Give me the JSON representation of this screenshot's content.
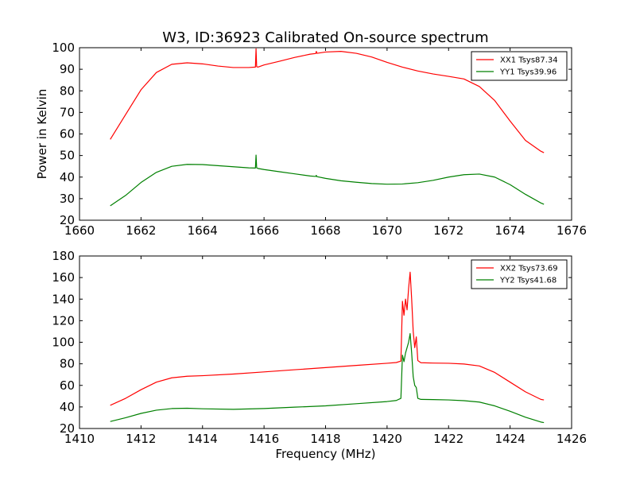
{
  "chart_data": [
    {
      "type": "line",
      "title": "W3, ID:36923 Calibrated On-source spectrum",
      "xlabel": "",
      "ylabel": "Power in Kelvin",
      "xlim": [
        1660,
        1676
      ],
      "ylim": [
        20,
        100
      ],
      "xticks": [
        "1660",
        "1662",
        "1664",
        "1666",
        "1668",
        "1670",
        "1672",
        "1674",
        "1676"
      ],
      "yticks": [
        "20",
        "30",
        "40",
        "50",
        "60",
        "70",
        "80",
        "90",
        "100"
      ],
      "grid": false,
      "legend_position": "top-right",
      "series": [
        {
          "name": "XX1 Tsys87.34",
          "color": "#ff0000",
          "x": [
            1661.0,
            1661.5,
            1662.0,
            1662.5,
            1663.0,
            1663.5,
            1664.0,
            1664.5,
            1665.0,
            1665.5,
            1665.72,
            1665.74,
            1665.76,
            1665.8,
            1666.0,
            1666.5,
            1667.0,
            1667.5,
            1667.68,
            1667.7,
            1667.72,
            1668.0,
            1668.5,
            1669.0,
            1669.5,
            1670.0,
            1670.5,
            1671.0,
            1671.5,
            1672.0,
            1672.5,
            1673.0,
            1673.5,
            1674.0,
            1674.5,
            1675.0,
            1675.1
          ],
          "y": [
            57.5,
            69.0,
            80.5,
            88.5,
            92.3,
            93.0,
            92.5,
            91.5,
            90.8,
            90.8,
            91.0,
            99.5,
            91.2,
            91.0,
            92.0,
            93.7,
            95.5,
            97.0,
            97.3,
            98.3,
            97.4,
            98.0,
            98.3,
            97.4,
            95.7,
            93.2,
            91.0,
            89.2,
            87.8,
            86.7,
            85.5,
            82.0,
            75.5,
            66.0,
            57.0,
            52.0,
            51.3
          ]
        },
        {
          "name": "YY1 Tsys39.96",
          "color": "#008000",
          "x": [
            1661.0,
            1661.5,
            1662.0,
            1662.5,
            1663.0,
            1663.5,
            1664.0,
            1664.5,
            1665.0,
            1665.5,
            1665.72,
            1665.74,
            1665.76,
            1665.8,
            1666.0,
            1666.5,
            1667.0,
            1667.5,
            1667.68,
            1667.7,
            1667.72,
            1668.0,
            1668.5,
            1669.0,
            1669.5,
            1670.0,
            1670.5,
            1671.0,
            1671.5,
            1672.0,
            1672.5,
            1673.0,
            1673.5,
            1674.0,
            1674.5,
            1675.0,
            1675.1
          ],
          "y": [
            26.7,
            31.5,
            37.5,
            42.2,
            45.0,
            45.9,
            45.8,
            45.3,
            44.8,
            44.3,
            44.2,
            50.2,
            44.3,
            44.0,
            43.5,
            42.5,
            41.5,
            40.5,
            40.3,
            40.8,
            40.2,
            39.4,
            38.3,
            37.6,
            37.0,
            36.7,
            36.8,
            37.4,
            38.5,
            40.0,
            41.1,
            41.4,
            40.0,
            36.5,
            32.0,
            28.0,
            27.4
          ]
        }
      ]
    },
    {
      "type": "line",
      "title": "",
      "xlabel": "Frequency (MHz)",
      "ylabel": "",
      "xlim": [
        1410,
        1426
      ],
      "ylim": [
        20,
        180
      ],
      "xticks": [
        "1410",
        "1412",
        "1414",
        "1416",
        "1418",
        "1420",
        "1422",
        "1424",
        "1426"
      ],
      "yticks": [
        "20",
        "40",
        "60",
        "80",
        "100",
        "120",
        "140",
        "160",
        "180"
      ],
      "grid": false,
      "legend_position": "top-right",
      "series": [
        {
          "name": "XX2 Tsys73.69",
          "color": "#ff0000",
          "x": [
            1411.0,
            1411.5,
            1412.0,
            1412.5,
            1413.0,
            1413.5,
            1414.0,
            1415.0,
            1416.0,
            1417.0,
            1418.0,
            1419.0,
            1420.0,
            1420.3,
            1420.45,
            1420.5,
            1420.55,
            1420.6,
            1420.65,
            1420.7,
            1420.75,
            1420.8,
            1420.85,
            1420.9,
            1420.95,
            1421.0,
            1421.1,
            1421.5,
            1422.0,
            1422.5,
            1423.0,
            1423.5,
            1424.0,
            1424.5,
            1425.0,
            1425.1
          ],
          "y": [
            41.5,
            48.0,
            56.0,
            63.0,
            67.0,
            68.5,
            69.0,
            70.5,
            72.5,
            74.5,
            76.5,
            78.5,
            80.5,
            81.2,
            82.5,
            138.0,
            125.0,
            140.0,
            130.0,
            150.0,
            165.0,
            140.0,
            110.0,
            95.0,
            105.0,
            83.0,
            81.0,
            80.7,
            80.5,
            79.8,
            78.0,
            72.0,
            63.0,
            54.0,
            47.0,
            46.5
          ]
        },
        {
          "name": "YY2 Tsys41.68",
          "color": "#008000",
          "x": [
            1411.0,
            1411.5,
            1412.0,
            1412.5,
            1413.0,
            1413.5,
            1414.0,
            1415.0,
            1416.0,
            1417.0,
            1418.0,
            1419.0,
            1420.0,
            1420.3,
            1420.45,
            1420.5,
            1420.55,
            1420.6,
            1420.65,
            1420.7,
            1420.75,
            1420.8,
            1420.85,
            1420.9,
            1420.95,
            1421.0,
            1421.1,
            1421.5,
            1422.0,
            1422.5,
            1423.0,
            1423.5,
            1424.0,
            1424.5,
            1425.0,
            1425.1
          ],
          "y": [
            26.5,
            30.0,
            34.0,
            37.0,
            38.5,
            38.8,
            38.3,
            37.8,
            38.5,
            39.8,
            41.0,
            43.0,
            45.0,
            46.0,
            48.0,
            88.0,
            82.0,
            90.0,
            95.0,
            100.0,
            108.0,
            90.0,
            68.0,
            60.0,
            58.0,
            48.0,
            47.0,
            46.8,
            46.5,
            45.8,
            44.5,
            41.0,
            36.0,
            30.5,
            26.0,
            25.5
          ]
        }
      ]
    }
  ]
}
